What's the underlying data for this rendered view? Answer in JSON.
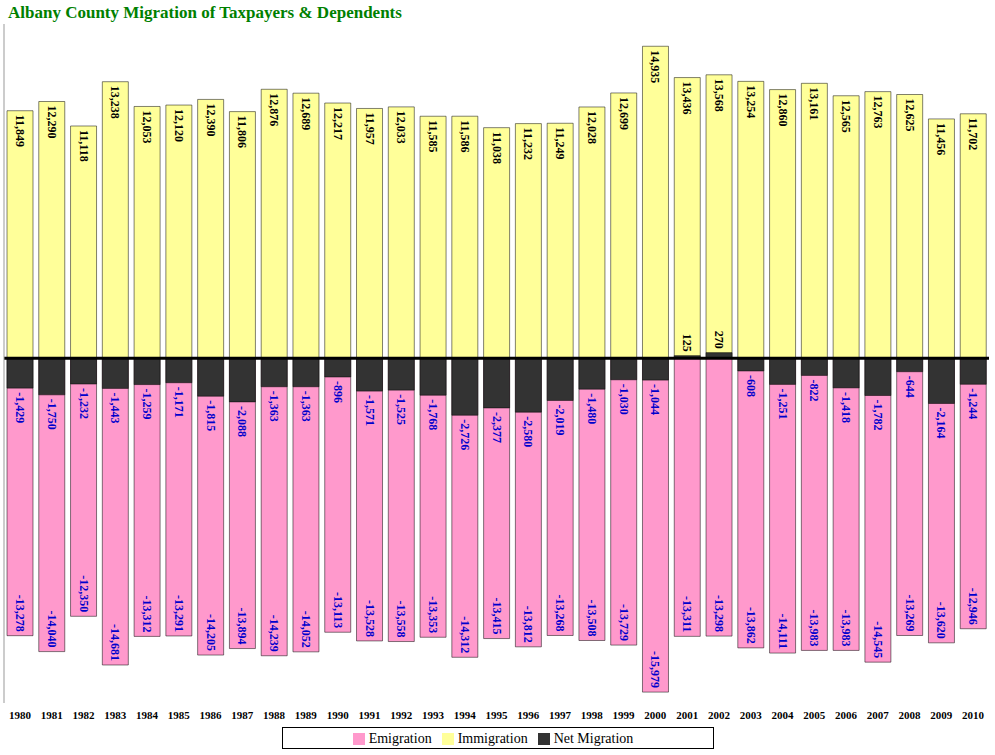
{
  "chart_data": {
    "type": "bar",
    "title": "Albany County Migration of Taxpayers & Dependents",
    "categories": [
      "1980",
      "1981",
      "1982",
      "1983",
      "1984",
      "1985",
      "1986",
      "1987",
      "1988",
      "1989",
      "1990",
      "1991",
      "1992",
      "1993",
      "1994",
      "1995",
      "1996",
      "1997",
      "1998",
      "1999",
      "2000",
      "2001",
      "2002",
      "2003",
      "2004",
      "2005",
      "2006",
      "2007",
      "2008",
      "2009",
      "2010"
    ],
    "series": [
      {
        "name": "Immigration",
        "color": "#ffff99",
        "values": [
          11849,
          12290,
          11118,
          13238,
          12053,
          12120,
          12390,
          11806,
          12876,
          12689,
          12217,
          11957,
          12033,
          11585,
          11586,
          11038,
          11232,
          11249,
          12028,
          12699,
          14935,
          13436,
          13568,
          13254,
          12860,
          13161,
          12565,
          12763,
          12625,
          11456,
          11702
        ],
        "value_labels": [
          "11,849",
          "12,290",
          "11,118",
          "13,238",
          "12,053",
          "12,120",
          "12,390",
          "11,806",
          "12,876",
          "12,689",
          "12,217",
          "11,957",
          "12,033",
          "11,585",
          "11,586",
          "11,038",
          "11,232",
          "11,249",
          "12,028",
          "12,699",
          "14,935",
          "13,436",
          "13,568",
          "13,254",
          "12,860",
          "13,161",
          "12,565",
          "12,763",
          "12,625",
          "11,456",
          "11,702"
        ]
      },
      {
        "name": "Emigration",
        "color": "#ff99cc",
        "values": [
          -13278,
          -14040,
          -12350,
          -14681,
          -13312,
          -13291,
          -14205,
          -13894,
          -14239,
          -14052,
          -13113,
          -13528,
          -13558,
          -13353,
          -14312,
          -13415,
          -13812,
          -13268,
          -13508,
          -13729,
          -15979,
          -13311,
          -13298,
          -13862,
          -14111,
          -13983,
          -13983,
          -14545,
          -13269,
          -13620,
          -12946
        ],
        "value_labels": [
          "-13,278",
          "-14,040",
          "-12,350",
          "-14,681",
          "-13,312",
          "-13,291",
          "-14,205",
          "-13,894",
          "-14,239",
          "-14,052",
          "-13,113",
          "-13,528",
          "-13,558",
          "-13,353",
          "-14,312",
          "-13,415",
          "-13,812",
          "-13,268",
          "-13,508",
          "-13,729",
          "-15,979",
          "-13,311",
          "-13,298",
          "-13,862",
          "-14,111",
          "-13,983",
          "-13,983",
          "-14,545",
          "-13,269",
          "-13,620",
          "-12,946"
        ]
      },
      {
        "name": "Net Migration",
        "color": "#333333",
        "values": [
          -1429,
          -1750,
          -1232,
          -1443,
          -1259,
          -1171,
          -1815,
          -2088,
          -1363,
          -1363,
          -896,
          -1571,
          -1525,
          -1768,
          -2726,
          -2377,
          -2580,
          -2019,
          -1480,
          -1030,
          -1044,
          125,
          270,
          -608,
          -1251,
          -822,
          -1418,
          -1782,
          -644,
          -2164,
          -1244
        ],
        "value_labels": [
          "-1,429",
          "-1,750",
          "-1,232",
          "-1,443",
          "-1,259",
          "-1,171",
          "-1,815",
          "-2,088",
          "-1,363",
          "-1,363",
          "-896",
          "-1,571",
          "-1,525",
          "-1,768",
          "-2,726",
          "-2,377",
          "-2,580",
          "-2,019",
          "-1,480",
          "-1,030",
          "-1,044",
          "125",
          "270",
          "-608",
          "-1,251",
          "-822",
          "-1,418",
          "-1,782",
          "-644",
          "-2,164",
          "-1,244"
        ]
      }
    ],
    "ylim": [
      -16500,
      16000
    ],
    "yticks": [
      0
    ],
    "tick_labels": "x",
    "data_labels": true,
    "legend": "bottom",
    "grid": false
  }
}
